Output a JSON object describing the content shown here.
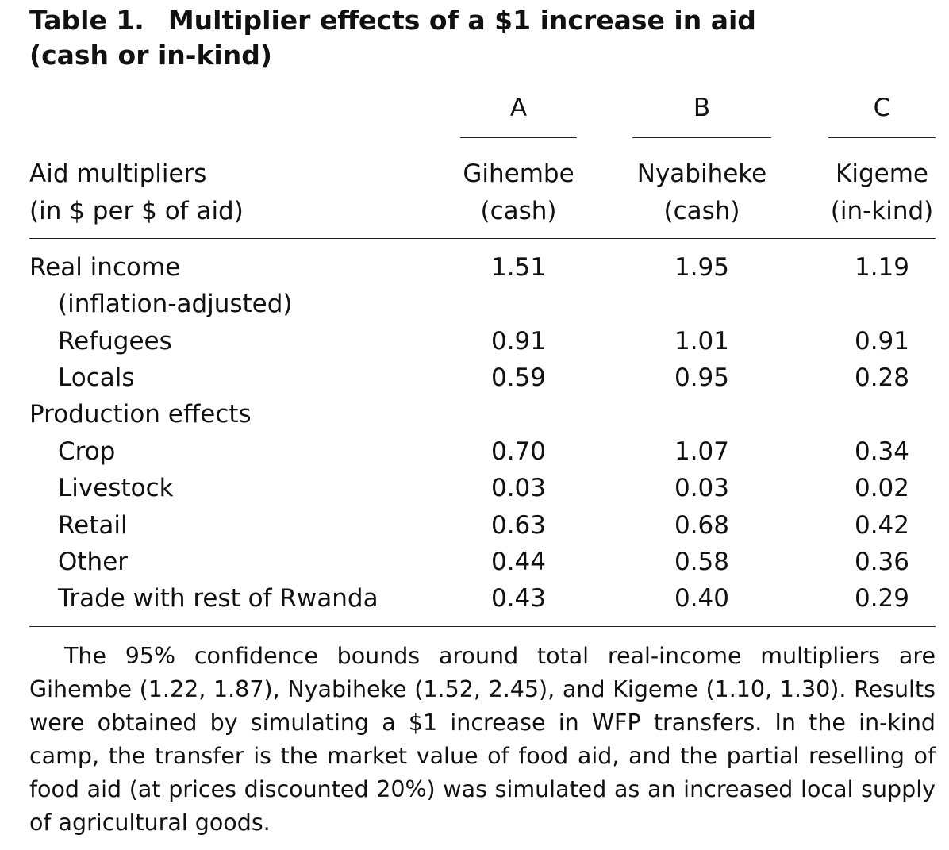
{
  "table": {
    "label": "Table 1.",
    "caption": "Multiplier effects of a $1 increase in aid (cash or in-kind)",
    "stub_header": [
      "Aid multipliers",
      "(in $ per $ of aid)"
    ],
    "columns": [
      {
        "letter": "A",
        "name": "Gihembe",
        "type": "(cash)"
      },
      {
        "letter": "B",
        "name": "Nyabiheke",
        "type": "(cash)"
      },
      {
        "letter": "C",
        "name": "Kigeme",
        "type": "(in-kind)"
      }
    ],
    "rows": [
      {
        "label": "Real income",
        "values": [
          "1.51",
          "1.95",
          "1.19"
        ]
      },
      {
        "label": "(inflation-adjusted)",
        "values": [
          "",
          "",
          ""
        ]
      },
      {
        "label": "Refugees",
        "values": [
          "0.91",
          "1.01",
          "0.91"
        ]
      },
      {
        "label": "Locals",
        "values": [
          "0.59",
          "0.95",
          "0.28"
        ]
      },
      {
        "label": "Production effects",
        "values": [
          "",
          "",
          ""
        ]
      },
      {
        "label": "Crop",
        "values": [
          "0.70",
          "1.07",
          "0.34"
        ]
      },
      {
        "label": "Livestock",
        "values": [
          "0.03",
          "0.03",
          "0.02"
        ]
      },
      {
        "label": "Retail",
        "values": [
          "0.63",
          "0.68",
          "0.42"
        ]
      },
      {
        "label": "Other",
        "values": [
          "0.44",
          "0.58",
          "0.36"
        ]
      },
      {
        "label": "Trade with rest of Rwanda",
        "values": [
          "0.43",
          "0.40",
          "0.29"
        ]
      }
    ],
    "note": "The 95% confidence bounds around total real-income multipliers are Gihembe (1.22, 1.87), Nyabiheke (1.52, 2.45), and Kigeme (1.10, 1.30). Results were obtained by simulating a $1 increase in WFP transfers. In the in-kind camp, the transfer is the market value of food aid, and the partial reselling of food aid (at prices discounted 20%) was simulated as an increased local supply of agricultural goods."
  }
}
